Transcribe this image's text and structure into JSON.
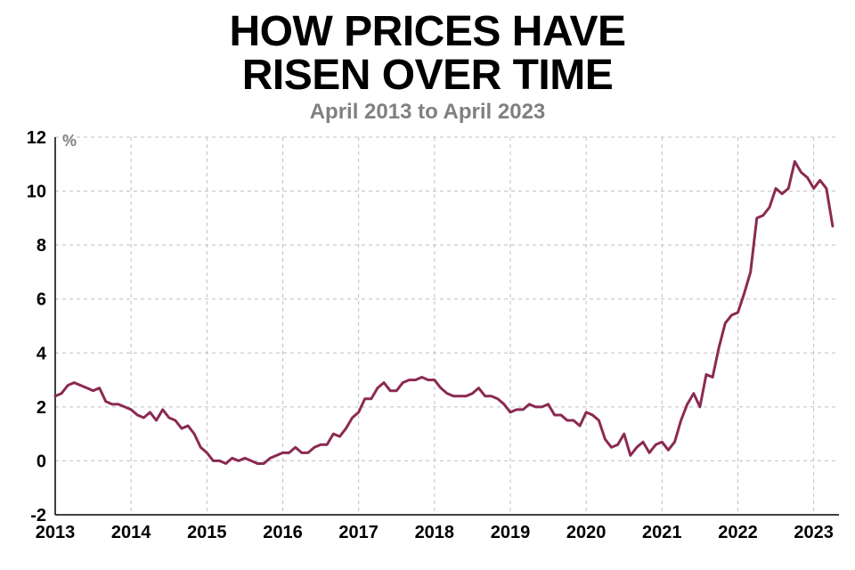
{
  "title_line1": "HOW PRICES HAVE",
  "title_line2": "RISEN OVER TIME",
  "subtitle": "April 2013 to April 2023",
  "title_color": "#000000",
  "title_fontsize": 48,
  "subtitle_color": "#808080",
  "subtitle_fontsize": 24,
  "chart": {
    "type": "line",
    "background_color": "#ffffff",
    "grid_color": "#bfbfbf",
    "grid_dash": "4 4",
    "axis_color": "#000000",
    "axis_width": 1.5,
    "line_color": "#8b2a52",
    "line_width": 3,
    "tick_font_color": "#000000",
    "tick_font_size": 20,
    "tick_font_weight": 700,
    "unit_label": "%",
    "unit_label_color": "#808080",
    "unit_label_fontsize": 18,
    "ylim": [
      -2,
      12
    ],
    "yticks": [
      -2,
      0,
      2,
      4,
      6,
      8,
      10,
      12
    ],
    "xlim": [
      2013,
      2023.333
    ],
    "xticks": [
      2013,
      2014,
      2015,
      2016,
      2017,
      2018,
      2019,
      2020,
      2021,
      2022,
      2023
    ],
    "xtick_labels": [
      "2013",
      "2014",
      "2015",
      "2016",
      "2017",
      "2018",
      "2019",
      "2020",
      "2021",
      "2022",
      "2023"
    ],
    "data": [
      [
        2013.0,
        2.4
      ],
      [
        2013.083,
        2.5
      ],
      [
        2013.167,
        2.8
      ],
      [
        2013.25,
        2.9
      ],
      [
        2013.333,
        2.8
      ],
      [
        2013.417,
        2.7
      ],
      [
        2013.5,
        2.6
      ],
      [
        2013.583,
        2.7
      ],
      [
        2013.667,
        2.2
      ],
      [
        2013.75,
        2.1
      ],
      [
        2013.833,
        2.1
      ],
      [
        2013.917,
        2.0
      ],
      [
        2014.0,
        1.9
      ],
      [
        2014.083,
        1.7
      ],
      [
        2014.167,
        1.6
      ],
      [
        2014.25,
        1.8
      ],
      [
        2014.333,
        1.5
      ],
      [
        2014.417,
        1.9
      ],
      [
        2014.5,
        1.6
      ],
      [
        2014.583,
        1.5
      ],
      [
        2014.667,
        1.2
      ],
      [
        2014.75,
        1.3
      ],
      [
        2014.833,
        1.0
      ],
      [
        2014.917,
        0.5
      ],
      [
        2015.0,
        0.3
      ],
      [
        2015.083,
        0.0
      ],
      [
        2015.167,
        0.0
      ],
      [
        2015.25,
        -0.1
      ],
      [
        2015.333,
        0.1
      ],
      [
        2015.417,
        0.0
      ],
      [
        2015.5,
        0.1
      ],
      [
        2015.583,
        0.0
      ],
      [
        2015.667,
        -0.1
      ],
      [
        2015.75,
        -0.1
      ],
      [
        2015.833,
        0.1
      ],
      [
        2015.917,
        0.2
      ],
      [
        2016.0,
        0.3
      ],
      [
        2016.083,
        0.3
      ],
      [
        2016.167,
        0.5
      ],
      [
        2016.25,
        0.3
      ],
      [
        2016.333,
        0.3
      ],
      [
        2016.417,
        0.5
      ],
      [
        2016.5,
        0.6
      ],
      [
        2016.583,
        0.6
      ],
      [
        2016.667,
        1.0
      ],
      [
        2016.75,
        0.9
      ],
      [
        2016.833,
        1.2
      ],
      [
        2016.917,
        1.6
      ],
      [
        2017.0,
        1.8
      ],
      [
        2017.083,
        2.3
      ],
      [
        2017.167,
        2.3
      ],
      [
        2017.25,
        2.7
      ],
      [
        2017.333,
        2.9
      ],
      [
        2017.417,
        2.6
      ],
      [
        2017.5,
        2.6
      ],
      [
        2017.583,
        2.9
      ],
      [
        2017.667,
        3.0
      ],
      [
        2017.75,
        3.0
      ],
      [
        2017.833,
        3.1
      ],
      [
        2017.917,
        3.0
      ],
      [
        2018.0,
        3.0
      ],
      [
        2018.083,
        2.7
      ],
      [
        2018.167,
        2.5
      ],
      [
        2018.25,
        2.4
      ],
      [
        2018.333,
        2.4
      ],
      [
        2018.417,
        2.4
      ],
      [
        2018.5,
        2.5
      ],
      [
        2018.583,
        2.7
      ],
      [
        2018.667,
        2.4
      ],
      [
        2018.75,
        2.4
      ],
      [
        2018.833,
        2.3
      ],
      [
        2018.917,
        2.1
      ],
      [
        2019.0,
        1.8
      ],
      [
        2019.083,
        1.9
      ],
      [
        2019.167,
        1.9
      ],
      [
        2019.25,
        2.1
      ],
      [
        2019.333,
        2.0
      ],
      [
        2019.417,
        2.0
      ],
      [
        2019.5,
        2.1
      ],
      [
        2019.583,
        1.7
      ],
      [
        2019.667,
        1.7
      ],
      [
        2019.75,
        1.5
      ],
      [
        2019.833,
        1.5
      ],
      [
        2019.917,
        1.3
      ],
      [
        2020.0,
        1.8
      ],
      [
        2020.083,
        1.7
      ],
      [
        2020.167,
        1.5
      ],
      [
        2020.25,
        0.8
      ],
      [
        2020.333,
        0.5
      ],
      [
        2020.417,
        0.6
      ],
      [
        2020.5,
        1.0
      ],
      [
        2020.583,
        0.2
      ],
      [
        2020.667,
        0.5
      ],
      [
        2020.75,
        0.7
      ],
      [
        2020.833,
        0.3
      ],
      [
        2020.917,
        0.6
      ],
      [
        2021.0,
        0.7
      ],
      [
        2021.083,
        0.4
      ],
      [
        2021.167,
        0.7
      ],
      [
        2021.25,
        1.5
      ],
      [
        2021.333,
        2.1
      ],
      [
        2021.417,
        2.5
      ],
      [
        2021.5,
        2.0
      ],
      [
        2021.583,
        3.2
      ],
      [
        2021.667,
        3.1
      ],
      [
        2021.75,
        4.2
      ],
      [
        2021.833,
        5.1
      ],
      [
        2021.917,
        5.4
      ],
      [
        2022.0,
        5.5
      ],
      [
        2022.083,
        6.2
      ],
      [
        2022.167,
        7.0
      ],
      [
        2022.25,
        9.0
      ],
      [
        2022.333,
        9.1
      ],
      [
        2022.417,
        9.4
      ],
      [
        2022.5,
        10.1
      ],
      [
        2022.583,
        9.9
      ],
      [
        2022.667,
        10.1
      ],
      [
        2022.75,
        11.1
      ],
      [
        2022.833,
        10.7
      ],
      [
        2022.917,
        10.5
      ],
      [
        2023.0,
        10.1
      ],
      [
        2023.083,
        10.4
      ],
      [
        2023.167,
        10.1
      ],
      [
        2023.25,
        8.7
      ]
    ]
  }
}
